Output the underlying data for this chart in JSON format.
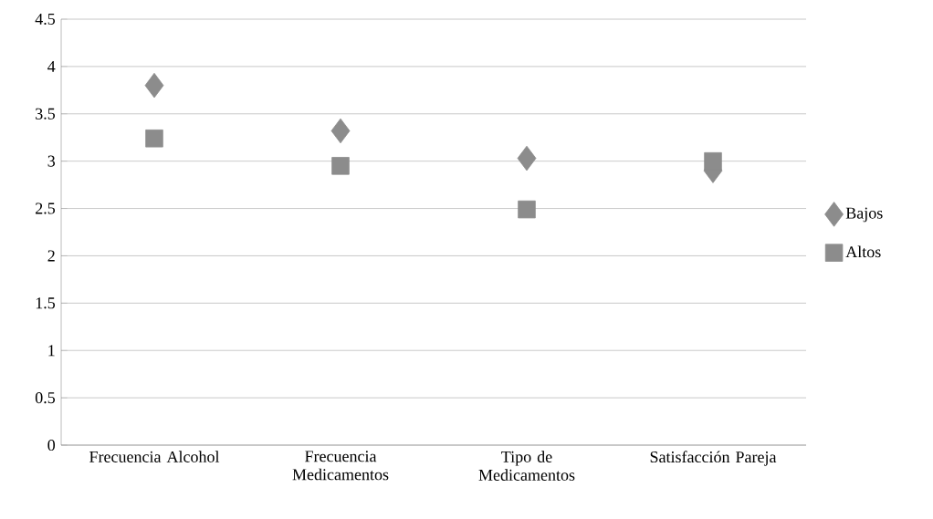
{
  "chart_data": {
    "type": "scatter",
    "categories": [
      "Frecuencia Alcohol",
      "Frecuencia Medicamentos",
      "Tipo de Medicamentos",
      "Satisfacción Pareja"
    ],
    "series": [
      {
        "name": "Bajos",
        "color": "#8c8c8c",
        "marker": "diamond",
        "values": [
          3.8,
          3.32,
          3.03,
          2.9
        ]
      },
      {
        "name": "Altos",
        "color": "#8c8c8c",
        "marker": "square",
        "values": [
          3.24,
          2.95,
          2.49,
          3.0
        ]
      }
    ],
    "ylim": [
      0,
      4.5
    ],
    "yticks": [
      0,
      0.5,
      1,
      1.5,
      2,
      2.5,
      3,
      3.5,
      4,
      4.5
    ],
    "grid": "y",
    "legend": "right"
  }
}
